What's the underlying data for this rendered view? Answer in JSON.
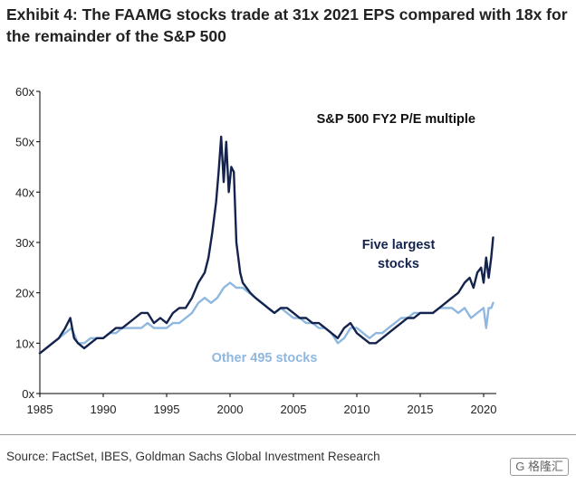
{
  "title": "Exhibit 4: The FAAMG stocks trade at 31x 2021 EPS compared with 18x for the remainder of the S&P 500",
  "source": "Source: FactSet, IBES, Goldman Sachs Global Investment Research",
  "watermark": "G 格隆汇",
  "colors": {
    "five_largest": "#14234d",
    "other_495": "#8fb8e0",
    "axis": "#000000"
  },
  "chart_data": {
    "type": "line",
    "title": "S&P 500 FY2 P/E multiple",
    "xlabel": "",
    "ylabel": "",
    "xlim": [
      1985,
      2021
    ],
    "ylim": [
      0,
      60
    ],
    "x_ticks": [
      1985,
      1990,
      1995,
      2000,
      2005,
      2010,
      2015,
      2020
    ],
    "x_tick_labels": [
      "1985",
      "1990",
      "1995",
      "2000",
      "2005",
      "2010",
      "2015",
      "2020"
    ],
    "y_ticks": [
      0,
      10,
      20,
      30,
      40,
      50,
      60
    ],
    "y_tick_labels": [
      "0x",
      "10x",
      "20x",
      "30x",
      "40x",
      "50x",
      "60x"
    ],
    "grid": false,
    "legend": "inline labels",
    "series": [
      {
        "name": "Five largest stocks",
        "label_line1": "Five largest",
        "label_line2": "stocks",
        "x": [
          1985.0,
          1985.5,
          1986.0,
          1986.5,
          1987.0,
          1987.4,
          1987.7,
          1988.0,
          1988.5,
          1989.0,
          1989.5,
          1990.0,
          1990.5,
          1991.0,
          1991.5,
          1992.0,
          1992.5,
          1993.0,
          1993.5,
          1994.0,
          1994.5,
          1995.0,
          1995.5,
          1996.0,
          1996.5,
          1997.0,
          1997.5,
          1998.0,
          1998.3,
          1998.6,
          1998.9,
          1999.1,
          1999.3,
          1999.5,
          1999.7,
          1999.9,
          2000.1,
          2000.3,
          2000.5,
          2000.8,
          2001.0,
          2001.3,
          2001.6,
          2002.0,
          2002.5,
          2003.0,
          2003.5,
          2004.0,
          2004.5,
          2005.0,
          2005.5,
          2006.0,
          2006.5,
          2007.0,
          2007.5,
          2008.0,
          2008.5,
          2009.0,
          2009.5,
          2010.0,
          2010.5,
          2011.0,
          2011.5,
          2012.0,
          2012.5,
          2013.0,
          2013.5,
          2014.0,
          2014.5,
          2015.0,
          2015.5,
          2016.0,
          2016.5,
          2017.0,
          2017.5,
          2018.0,
          2018.5,
          2018.9,
          2019.2,
          2019.5,
          2019.8,
          2020.0,
          2020.2,
          2020.4,
          2020.6,
          2020.75
        ],
        "values": [
          8,
          9,
          10,
          11,
          13,
          15,
          11,
          10,
          9,
          10,
          11,
          11,
          12,
          13,
          13,
          14,
          15,
          16,
          16,
          14,
          15,
          14,
          16,
          17,
          17,
          19,
          22,
          24,
          27,
          32,
          38,
          44,
          51,
          42,
          50,
          40,
          45,
          44,
          30,
          24,
          22,
          21,
          20,
          19,
          18,
          17,
          16,
          17,
          17,
          16,
          15,
          15,
          14,
          14,
          13,
          12,
          11,
          13,
          14,
          12,
          11,
          10,
          10,
          11,
          12,
          13,
          14,
          15,
          15,
          16,
          16,
          16,
          17,
          18,
          19,
          20,
          22,
          23,
          21,
          24,
          25,
          22,
          27,
          23,
          27,
          31
        ]
      },
      {
        "name": "Other 495 stocks",
        "label_line1": "Other 495 stocks",
        "x": [
          1985.0,
          1985.5,
          1986.0,
          1986.5,
          1987.0,
          1987.5,
          1988.0,
          1988.5,
          1989.0,
          1989.5,
          1990.0,
          1990.5,
          1991.0,
          1991.5,
          1992.0,
          1992.5,
          1993.0,
          1993.5,
          1994.0,
          1994.5,
          1995.0,
          1995.5,
          1996.0,
          1996.5,
          1997.0,
          1997.5,
          1998.0,
          1998.5,
          1999.0,
          1999.5,
          2000.0,
          2000.5,
          2001.0,
          2001.5,
          2002.0,
          2002.5,
          2003.0,
          2003.5,
          2004.0,
          2004.5,
          2005.0,
          2005.5,
          2006.0,
          2006.5,
          2007.0,
          2007.5,
          2008.0,
          2008.5,
          2009.0,
          2009.5,
          2010.0,
          2010.5,
          2011.0,
          2011.5,
          2012.0,
          2012.5,
          2013.0,
          2013.5,
          2014.0,
          2014.5,
          2015.0,
          2015.5,
          2016.0,
          2016.5,
          2017.0,
          2017.5,
          2018.0,
          2018.5,
          2019.0,
          2019.5,
          2020.0,
          2020.2,
          2020.4,
          2020.6,
          2020.75
        ],
        "values": [
          8,
          9,
          10,
          11,
          12,
          13,
          10,
          10,
          11,
          11,
          11,
          12,
          12,
          13,
          13,
          13,
          13,
          14,
          13,
          13,
          13,
          14,
          14,
          15,
          16,
          18,
          19,
          18,
          19,
          21,
          22,
          21,
          21,
          20,
          19,
          18,
          17,
          16,
          17,
          16,
          15,
          15,
          14,
          14,
          13,
          13,
          12,
          10,
          11,
          13,
          13,
          12,
          11,
          12,
          12,
          13,
          14,
          15,
          15,
          16,
          16,
          16,
          16,
          17,
          17,
          17,
          16,
          17,
          15,
          16,
          17,
          13,
          17,
          17,
          18
        ]
      }
    ]
  }
}
